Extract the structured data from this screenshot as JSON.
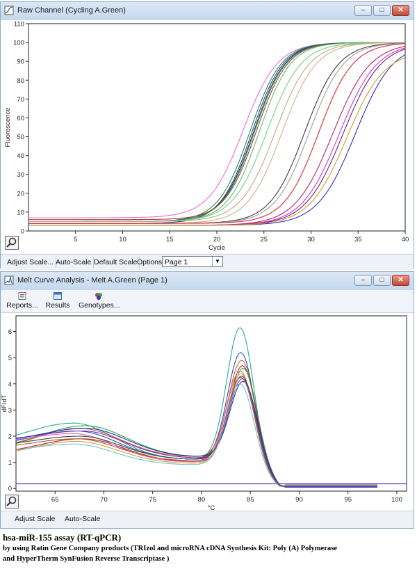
{
  "window1": {
    "title": "Raw Channel (Cycling A.Green)",
    "buttons": {
      "minimize": "–",
      "maximize": "□",
      "close": "✕"
    },
    "toolbar": {
      "adjust_scale": "Adjust Scale...",
      "auto_scale": "Auto-Scale",
      "default_scale": "Default Scale",
      "options": "Options",
      "page_select": "Page 1"
    }
  },
  "window2": {
    "title": "Melt Curve Analysis - Melt A.Green (Page 1)",
    "buttons": {
      "minimize": "–",
      "maximize": "□",
      "close": "✕"
    },
    "toolbar": {
      "reports": "Reports...",
      "results": "Results",
      "genotypes": "Genotypes..."
    },
    "bottombar": {
      "adjust_scale": "Adjust Scale",
      "auto_scale": "Auto-Scale"
    }
  },
  "caption": {
    "title": "hsa-miR-155 assay (RT-qPCR)",
    "line1": "by using Ratin Gene Company products (TRIzol and microRNA cDNA Synthesis Kit: Poly (A) Polymerase",
    "line2": "and HyperTherm SynFusion Reverse Transcriptase )"
  },
  "chart_data": [
    {
      "type": "line",
      "title": "",
      "xlabel": "Cycle",
      "ylabel": "Fluorescence",
      "xlim": [
        0,
        40
      ],
      "ylim": [
        0,
        110
      ],
      "x_ticks": [
        5,
        10,
        15,
        20,
        25,
        30,
        35,
        40
      ],
      "y_ticks": [
        0,
        10,
        20,
        30,
        40,
        50,
        60,
        70,
        80,
        90,
        100,
        110
      ],
      "series": [
        {
          "color": "#e86ad6",
          "baseline": 7,
          "mid": 22.8,
          "k": 0.55,
          "plateau": 100
        },
        {
          "color": "#2b8a3e",
          "baseline": 5,
          "mid": 23.5,
          "k": 0.6,
          "plateau": 100
        },
        {
          "color": "#1f3fb5",
          "baseline": 4,
          "mid": 23.7,
          "k": 0.6,
          "plateau": 100
        },
        {
          "color": "#333333",
          "baseline": 5,
          "mid": 23.9,
          "k": 0.6,
          "plateau": 100
        },
        {
          "color": "#3a9a55",
          "baseline": 5,
          "mid": 24.0,
          "k": 0.6,
          "plateau": 100
        },
        {
          "color": "#a23c3c",
          "baseline": 6,
          "mid": 24.2,
          "k": 0.6,
          "plateau": 100
        },
        {
          "color": "#58c070",
          "baseline": 5,
          "mid": 24.5,
          "k": 0.6,
          "plateau": 100
        },
        {
          "color": "#6fd08a",
          "baseline": 5,
          "mid": 25.3,
          "k": 0.55,
          "plateau": 100
        },
        {
          "color": "#bca884",
          "baseline": 5,
          "mid": 26.2,
          "k": 0.55,
          "plateau": 100
        },
        {
          "color": "#c8b48a",
          "baseline": 4,
          "mid": 26.9,
          "k": 0.55,
          "plateau": 100
        },
        {
          "color": "#3c3c3c",
          "baseline": 4,
          "mid": 29.3,
          "k": 0.55,
          "plateau": 100
        },
        {
          "color": "#9e9e9e",
          "baseline": 4,
          "mid": 29.8,
          "k": 0.55,
          "plateau": 100
        },
        {
          "color": "#e0262c",
          "baseline": 4,
          "mid": 30.8,
          "k": 0.55,
          "plateau": 100
        },
        {
          "color": "#bb2060",
          "baseline": 3,
          "mid": 32.3,
          "k": 0.5,
          "plateau": 100
        },
        {
          "color": "#d830c8",
          "baseline": 3,
          "mid": 33.0,
          "k": 0.5,
          "plateau": 100
        },
        {
          "color": "#6a1f8a",
          "baseline": 3,
          "mid": 33.4,
          "k": 0.5,
          "plateau": 100
        },
        {
          "color": "#2a2fc0",
          "baseline": 3,
          "mid": 34.7,
          "k": 0.5,
          "plateau": 100
        },
        {
          "color": "#d59b2b",
          "baseline": 3,
          "mid": 33.8,
          "k": 0.5,
          "plateau": 96
        }
      ]
    },
    {
      "type": "line",
      "title": "",
      "xlabel": "°C",
      "ylabel": "dF/dT",
      "xlim": [
        61,
        101
      ],
      "ylim": [
        -0.1,
        6.6
      ],
      "x_ticks": [
        65,
        70,
        75,
        80,
        85,
        90,
        95,
        100
      ],
      "y_ticks": [
        0,
        1,
        2,
        3,
        4,
        5,
        6
      ],
      "baseline_line": {
        "color": "#3a3ad8",
        "y": 0.18
      },
      "series": [
        {
          "color": "#2aa89a",
          "start": 1.7,
          "shoulder": 2.5,
          "trough": 1.1,
          "peak": 6.15
        },
        {
          "color": "#2050b0",
          "start": 1.6,
          "shoulder": 2.2,
          "trough": 1.1,
          "peak": 5.2
        },
        {
          "color": "#d85a20",
          "start": 1.4,
          "shoulder": 2.3,
          "trough": 1.2,
          "peak": 4.9
        },
        {
          "color": "#c02020",
          "start": 1.3,
          "shoulder": 1.9,
          "trough": 1.0,
          "peak": 4.7
        },
        {
          "color": "#30a030",
          "start": 1.5,
          "shoulder": 2.4,
          "trough": 1.2,
          "peak": 4.6
        },
        {
          "color": "#e060c0",
          "start": 1.7,
          "shoulder": 2.1,
          "trough": 1.0,
          "peak": 4.5
        },
        {
          "color": "#d0a040",
          "start": 1.2,
          "shoulder": 1.8,
          "trough": 0.95,
          "peak": 4.4
        },
        {
          "color": "#404040",
          "start": 1.6,
          "shoulder": 2.0,
          "trough": 1.1,
          "peak": 4.3
        },
        {
          "color": "#7a30a0",
          "start": 1.8,
          "shoulder": 2.2,
          "trough": 1.15,
          "peak": 4.2
        },
        {
          "color": "#2030d0",
          "start": 1.75,
          "shoulder": 2.3,
          "trough": 1.2,
          "peak": 4.1
        },
        {
          "color": "#70c0d0",
          "start": 1.3,
          "shoulder": 1.7,
          "trough": 0.9,
          "peak": 4.0
        },
        {
          "color": "#a06030",
          "start": 1.5,
          "shoulder": 1.9,
          "trough": 1.05,
          "peak": 4.25
        }
      ]
    }
  ]
}
